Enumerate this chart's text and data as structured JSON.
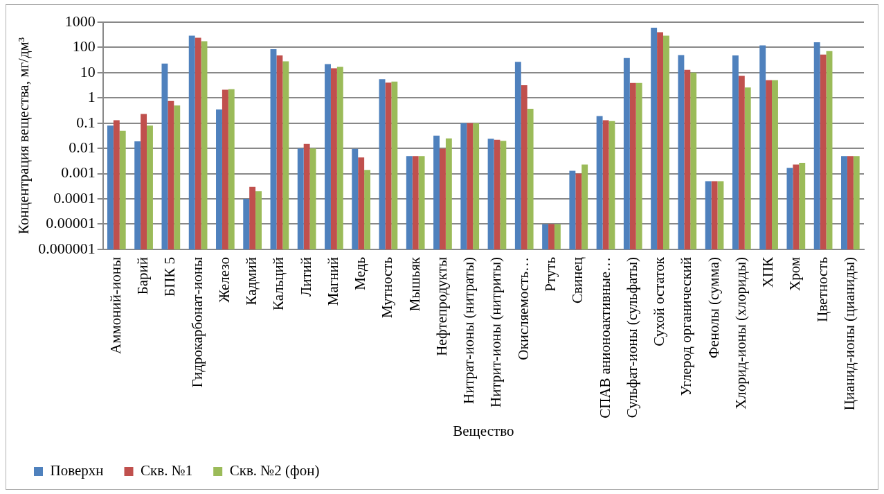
{
  "chart_data": {
    "type": "bar",
    "xlabel": "Вещество",
    "ylabel": "Концентрация вещества, мг/дм³",
    "categories": [
      "Аммоний-ионы",
      "Барий",
      "БПК 5",
      "Гидрокарбонат-ионы",
      "Железо",
      "Кадмий",
      "Кальций",
      "Литий",
      "Магний",
      "Медь",
      "Мутность",
      "Мышьяк",
      "Нефтепродукты",
      "Нитрат-ионы (нитраты)",
      "Нитрит-ионы (нитриты)",
      "Окисляемость…",
      "Ртуть",
      "Свинец",
      "СПАВ анионоактивные…",
      "Сульфат-ионы (сульфаты)",
      "Сухой остаток",
      "Углерод органический",
      "Фенолы (сумма)",
      "Хлорид-ионы (хлориды)",
      "ХПК",
      "Хром",
      "Цветность",
      "Цианид-ионы (цианиды)"
    ],
    "series": [
      {
        "name": "Поверхн",
        "color": "#4f81bd",
        "values": [
          0.08,
          0.019,
          23,
          290,
          0.35,
          0.0001,
          85,
          0.01,
          22,
          0.0097,
          5.5,
          0.005,
          0.032,
          0.1,
          0.024,
          27,
          1e-05,
          0.0013,
          0.19,
          38,
          600,
          50,
          0.0005,
          48,
          120,
          0.0017,
          160,
          0.005
        ]
      },
      {
        "name": "Скв. №1",
        "color": "#c0504d",
        "values": [
          0.13,
          0.23,
          0.75,
          240,
          2.1,
          0.0003,
          48,
          0.015,
          15,
          0.0044,
          4,
          0.005,
          0.0098,
          0.1,
          0.022,
          3.2,
          1e-05,
          0.001,
          0.13,
          3.9,
          400,
          13,
          0.0005,
          7.5,
          5,
          0.0023,
          52,
          0.005
        ]
      },
      {
        "name": "Скв. №2 (фон)",
        "color": "#9bbb59",
        "values": [
          0.05,
          0.08,
          0.5,
          175,
          2.2,
          0.0002,
          28,
          0.01,
          17,
          0.0014,
          4.4,
          0.005,
          0.025,
          0.1,
          0.02,
          0.37,
          1e-05,
          0.0023,
          0.12,
          3.9,
          290,
          10,
          0.0005,
          2.6,
          5,
          0.0027,
          72,
          0.005
        ]
      }
    ],
    "log": "y",
    "ylim": [
      1e-06,
      1000
    ],
    "yticks": [
      {
        "value": 1e-06,
        "label": "0.000001"
      },
      {
        "value": 1e-05,
        "label": "0.00001"
      },
      0.0001,
      0.001,
      0.01,
      0.1,
      1,
      10,
      100,
      1000
    ],
    "grid": "y",
    "legend": "bottom left"
  }
}
